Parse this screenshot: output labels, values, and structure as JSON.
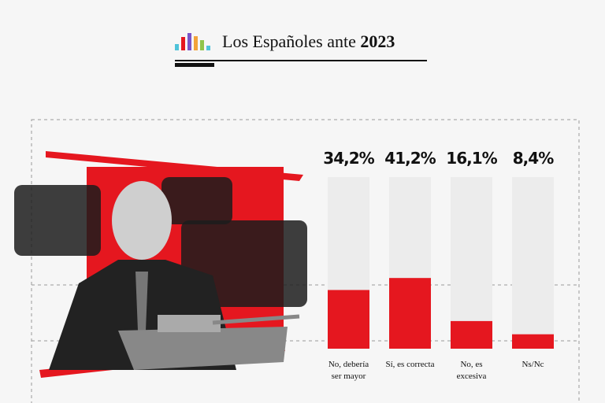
{
  "header": {
    "title": "Los Españoles ante",
    "year": "2023"
  },
  "chart_data": {
    "type": "bar",
    "categories": [
      "No, debería ser mayor",
      "Sí, es correcta",
      "No, es excesiva",
      "Ns/Nc"
    ],
    "values": [
      34.2,
      41.2,
      16.1,
      8.4
    ],
    "value_labels": [
      "34,2%",
      "41,2%",
      "16,1%",
      "8,4%"
    ],
    "color": "#e5171f",
    "ylim": [
      0,
      100
    ]
  }
}
